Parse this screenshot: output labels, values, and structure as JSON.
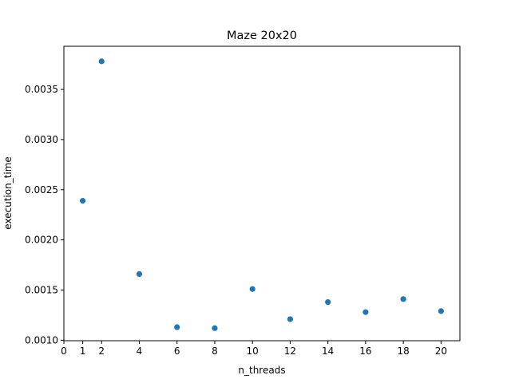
{
  "chart_data": {
    "type": "scatter",
    "title": "Maze 20x20",
    "xlabel": "n_threads",
    "ylabel": "execution_time",
    "x": [
      1,
      2,
      4,
      6,
      8,
      10,
      12,
      14,
      16,
      18,
      20
    ],
    "y": [
      0.00239,
      0.00378,
      0.00166,
      0.00113,
      0.00112,
      0.00151,
      0.00121,
      0.00138,
      0.00128,
      0.00141,
      0.00129
    ],
    "xticks": [
      0,
      1,
      2,
      4,
      6,
      8,
      10,
      12,
      14,
      16,
      18,
      20
    ],
    "yticks": [
      0.001,
      0.0015,
      0.002,
      0.0025,
      0.003,
      0.0035
    ],
    "ytick_labels": [
      "0.0010",
      "0.0015",
      "0.0020",
      "0.0025",
      "0.0030",
      "0.0035"
    ],
    "xlim": [
      0,
      21
    ],
    "ylim": [
      0.000995,
      0.00393
    ],
    "grid": false,
    "marker_color": "#1f77b4"
  }
}
